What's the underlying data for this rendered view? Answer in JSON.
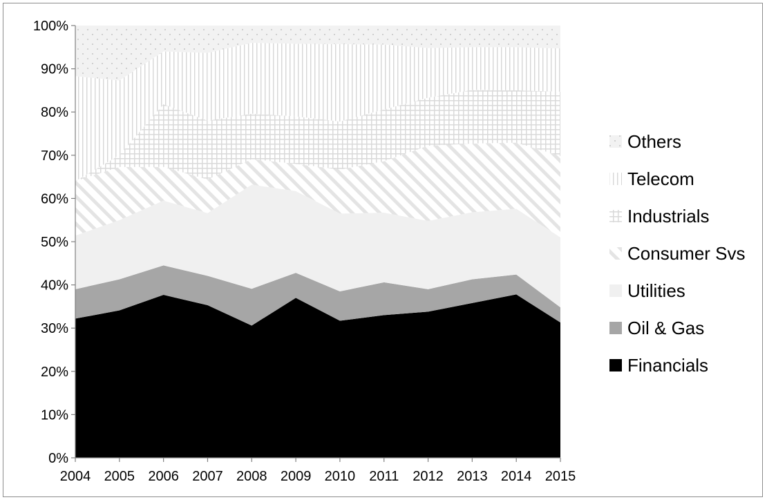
{
  "chart_data": {
    "type": "area",
    "stacked": true,
    "percent_stacked": true,
    "x": [
      "2004",
      "2005",
      "2006",
      "2007",
      "2008",
      "2009",
      "2010",
      "2011",
      "2012",
      "2013",
      "2014",
      "2015"
    ],
    "ylim": [
      0,
      100
    ],
    "ytick_step": 10,
    "ytick_labels": [
      "0%",
      "10%",
      "20%",
      "30%",
      "40%",
      "50%",
      "60%",
      "70%",
      "80%",
      "90%",
      "100%"
    ],
    "legend_position": "right",
    "series": [
      {
        "name": "Financials",
        "values": [
          32.2,
          34.1,
          37.7,
          35.3,
          30.6,
          37.0,
          31.7,
          33.0,
          33.8,
          35.8,
          37.8,
          31.3
        ],
        "fill": "#000000",
        "pattern": "solid"
      },
      {
        "name": "Oil & Gas",
        "values": [
          6.8,
          7.2,
          6.8,
          6.8,
          8.5,
          5.8,
          6.8,
          7.6,
          5.2,
          5.5,
          4.6,
          3.5
        ],
        "fill": "#a6a6a6",
        "pattern": "solid"
      },
      {
        "name": "Utilities",
        "values": [
          12.4,
          13.7,
          15.0,
          14.5,
          24.1,
          18.9,
          18.0,
          16.1,
          15.8,
          15.5,
          15.2,
          16.2
        ],
        "fill": "#f0f0f0",
        "pattern": "solid"
      },
      {
        "name": "Consumer Svs",
        "values": [
          12.6,
          12.3,
          7.8,
          7.8,
          5.9,
          6.3,
          10.2,
          11.9,
          17.4,
          15.9,
          15.3,
          18.8
        ],
        "fill": "#ffffff",
        "pattern": "diagonal"
      },
      {
        "name": "Industrials",
        "values": [
          0.0,
          2.7,
          14.5,
          13.6,
          10.5,
          11.0,
          11.1,
          12.0,
          11.1,
          12.4,
          12.1,
          14.9
        ],
        "fill": "#ffffff",
        "pattern": "grid"
      },
      {
        "name": "Telecom",
        "values": [
          24.3,
          17.3,
          12.2,
          15.7,
          16.4,
          16.8,
          17.9,
          15.0,
          11.5,
          9.9,
          10.0,
          10.0
        ],
        "fill": "#ffffff",
        "pattern": "vertical"
      },
      {
        "name": "Others",
        "values": [
          11.7,
          12.7,
          6.0,
          6.3,
          4.0,
          4.2,
          4.3,
          4.4,
          5.2,
          5.0,
          5.0,
          5.3
        ],
        "fill": "#f2f2f2",
        "pattern": "dots"
      }
    ],
    "legend_order": [
      "Others",
      "Telecom",
      "Industrials",
      "Consumer Svs",
      "Utilities",
      "Oil & Gas",
      "Financials"
    ],
    "colors": {
      "axis": "#7f7f7f",
      "text": "#000000",
      "border": "#8c8c8c"
    }
  }
}
